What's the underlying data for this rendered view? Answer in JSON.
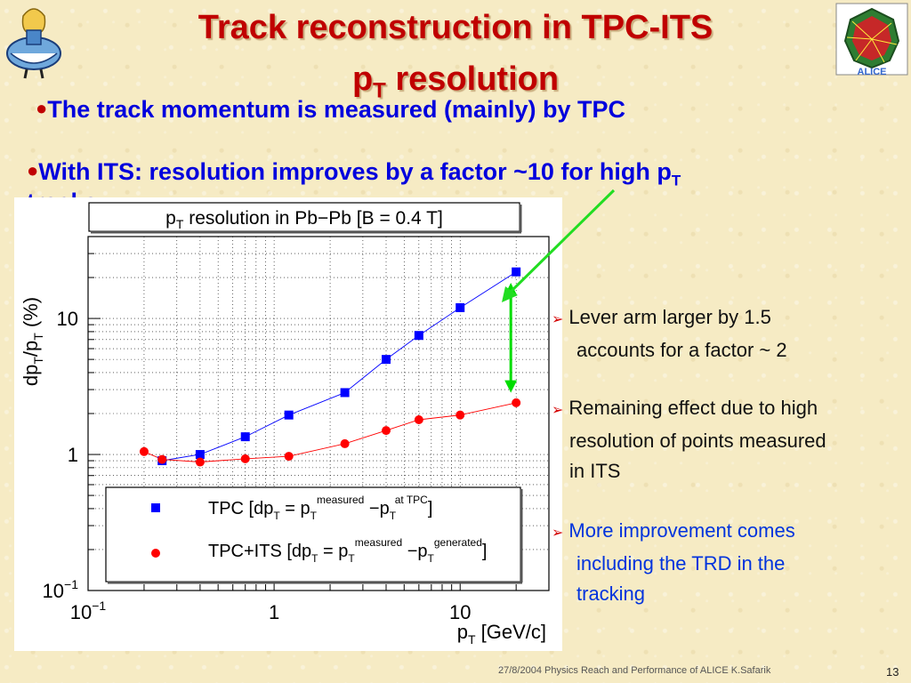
{
  "slide": {
    "title_line1": "Track reconstruction in TPC-ITS",
    "title_line2_p": "p",
    "title_line2_sub": "T",
    "title_line2_rest": " resolution",
    "bullet1": "The track momentum is measured (mainly) by TPC",
    "bullet2_text": "With ITS: resolution improves by a factor ~10 for high p",
    "bullet2_sub": "T",
    "bullet2_tail": " tracks",
    "notes": [
      {
        "line1": "Lever arm larger by 1.5",
        "line2": "accounts for a factor ~ 2"
      },
      {
        "line1": "Remaining effect due to high",
        "line2": "resolution of points measured",
        "line3": "in ITS"
      },
      {
        "line1": "More improvement comes",
        "line2": "including the TRD in the",
        "line3": "tracking"
      }
    ],
    "footer": "27/8/2004 Physics Reach and Performance of ALICE  K.Safarik",
    "page_number": "13",
    "logo_text": "ALICE"
  },
  "chart_data": {
    "type": "scatter",
    "title": "p_T resolution in Pb-Pb [B = 0.4 T]",
    "title_main": "p",
    "title_sub": "T",
    "title_rest": " resolution in Pb−Pb [B = 0.4 T]",
    "xlabel_main": "p",
    "xlabel_sub": "T",
    "xlabel_rest": " [GeV/c]",
    "ylabel_a": "dp",
    "ylabel_b": "T",
    "ylabel_c": "/p",
    "ylabel_d": "T",
    "ylabel_e": " (%)",
    "x_scale": "log",
    "y_scale": "log",
    "xlim": [
      0.1,
      30
    ],
    "ylim": [
      0.1,
      40
    ],
    "x_ticks": [
      "10",
      "1",
      "10"
    ],
    "x_tick_labels": [
      {
        "base": "10",
        "exp": "−1"
      },
      {
        "base": "1",
        "exp": ""
      },
      {
        "base": "10",
        "exp": ""
      }
    ],
    "y_tick_labels": [
      {
        "base": "10",
        "exp": "−1"
      },
      {
        "base": "1",
        "exp": ""
      },
      {
        "base": "10",
        "exp": ""
      }
    ],
    "grid": true,
    "legend_position": "bottom-left",
    "series": [
      {
        "name": "TPC [dp_T = p_T^measured − p_T^at TPC]",
        "legend_main": "TPC [dp",
        "legend_sub1": "T",
        "legend_mid": " = p",
        "legend_sub2": "T",
        "legend_sup2": "measured",
        "legend_mid2": " −p",
        "legend_sub3": "T",
        "legend_sup3": "at TPC",
        "legend_end": "]",
        "color": "#0000ff",
        "marker": "square",
        "x": [
          0.25,
          0.4,
          0.7,
          1.2,
          2.4,
          4,
          6,
          10,
          20
        ],
        "y": [
          0.9,
          1.0,
          1.35,
          1.95,
          2.85,
          5.0,
          7.5,
          12.0,
          22.0
        ]
      },
      {
        "name": "TPC+ITS [dp_T = p_T^measured − p_T^generated]",
        "legend_main": "TPC+ITS [dp",
        "legend_sub1": "T",
        "legend_mid": " = p",
        "legend_sub2": "T",
        "legend_sup2": "measured",
        "legend_mid2": " −p",
        "legend_sub3": "T",
        "legend_sup3": "generated",
        "legend_end": "]",
        "color": "#ff0000",
        "marker": "circle",
        "x": [
          0.2,
          0.25,
          0.4,
          0.7,
          1.2,
          2.4,
          4,
          6,
          10,
          20
        ],
        "y": [
          1.05,
          0.92,
          0.88,
          0.93,
          0.97,
          1.2,
          1.5,
          1.8,
          1.95,
          2.4
        ]
      }
    ],
    "annotations": [
      {
        "type": "double-arrow",
        "color": "#00dd00",
        "x": 20,
        "y_from": 2.6,
        "y_to": 20
      },
      {
        "type": "arrow",
        "color": "#00dd00",
        "description": "from bullet text pointing to high-pT gap"
      }
    ]
  }
}
